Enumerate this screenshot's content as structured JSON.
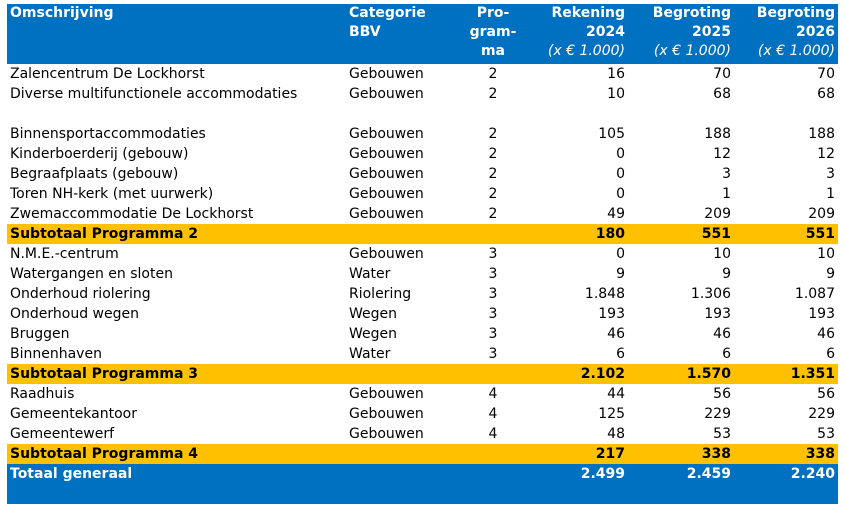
{
  "header": {
    "omschrijving": "Omschrijving",
    "categorie_line1": "Categorie",
    "categorie_line2": "BBV",
    "programma_line1": "Pro-",
    "programma_line2": "gram-",
    "programma_line3": "ma",
    "rekening_line1": "Rekening",
    "rekening_line2": "2024",
    "rekening_unit": "(x € 1.000)",
    "begroting2025_line1": "Begroting",
    "begroting2025_line2": "2025",
    "begroting2025_unit": "(x € 1.000)",
    "begroting2026_line1": "Begroting",
    "begroting2026_line2": "2026",
    "begroting2026_unit": "(x € 1.000)"
  },
  "rows": [
    {
      "omschrijving": "Zalencentrum De Lockhorst",
      "categorie": "Gebouwen",
      "programma": "2",
      "rekening": "16",
      "b2025": "70",
      "b2026": "70"
    },
    {
      "omschrijving": "Diverse multifunctionele accommodaties",
      "categorie": "Gebouwen",
      "programma": "2",
      "rekening": "10",
      "b2025": "68",
      "b2026": "68"
    },
    {
      "omschrijving": "Binnensportaccommodaties",
      "categorie": "Gebouwen",
      "programma": "2",
      "rekening": "105",
      "b2025": "188",
      "b2026": "188"
    },
    {
      "omschrijving": "Kinderboerderij (gebouw)",
      "categorie": "Gebouwen",
      "programma": "2",
      "rekening": "0",
      "b2025": "12",
      "b2026": "12"
    },
    {
      "omschrijving": "Begraafplaats (gebouw)",
      "categorie": "Gebouwen",
      "programma": "2",
      "rekening": "0",
      "b2025": "3",
      "b2026": "3"
    },
    {
      "omschrijving": "Toren NH-kerk (met uurwerk)",
      "categorie": "Gebouwen",
      "programma": "2",
      "rekening": "0",
      "b2025": "1",
      "b2026": "1"
    },
    {
      "omschrijving": "Zwemaccommodatie De Lockhorst",
      "categorie": "Gebouwen",
      "programma": "2",
      "rekening": "49",
      "b2025": "209",
      "b2026": "209"
    },
    {
      "omschrijving": "N.M.E.-centrum",
      "categorie": "Gebouwen",
      "programma": "3",
      "rekening": "0",
      "b2025": "10",
      "b2026": "10"
    },
    {
      "omschrijving": "Watergangen en sloten",
      "categorie": "Water",
      "programma": "3",
      "rekening": "9",
      "b2025": "9",
      "b2026": "9"
    },
    {
      "omschrijving": "Onderhoud riolering",
      "categorie": "Riolering",
      "programma": "3",
      "rekening": "1.848",
      "b2025": "1.306",
      "b2026": "1.087"
    },
    {
      "omschrijving": "Onderhoud wegen",
      "categorie": "Wegen",
      "programma": "3",
      "rekening": "193",
      "b2025": "193",
      "b2026": "193"
    },
    {
      "omschrijving": "Bruggen",
      "categorie": "Wegen",
      "programma": "3",
      "rekening": "46",
      "b2025": "46",
      "b2026": "46"
    },
    {
      "omschrijving": "Binnenhaven",
      "categorie": "Water",
      "programma": "3",
      "rekening": "6",
      "b2025": "6",
      "b2026": "6"
    },
    {
      "omschrijving": "Raadhuis",
      "categorie": "Gebouwen",
      "programma": "4",
      "rekening": "44",
      "b2025": "56",
      "b2026": "56"
    },
    {
      "omschrijving": "Gemeentekantoor",
      "categorie": "Gebouwen",
      "programma": "4",
      "rekening": "125",
      "b2025": "229",
      "b2026": "229"
    },
    {
      "omschrijving": "Gemeentewerf",
      "categorie": "Gebouwen",
      "programma": "4",
      "rekening": "48",
      "b2025": "53",
      "b2026": "53"
    }
  ],
  "subtotals": [
    {
      "label": "Subtotaal Programma 2",
      "rekening": "180",
      "b2025": "551",
      "b2026": "551"
    },
    {
      "label": "Subtotaal Programma 3",
      "rekening": "2.102",
      "b2025": "1.570",
      "b2026": "1.351"
    },
    {
      "label": "Subtotaal Programma 4",
      "rekening": "217",
      "b2025": "338",
      "b2026": "338"
    }
  ],
  "total": {
    "label": "Totaal generaal",
    "rekening": "2.499",
    "b2025": "2.459",
    "b2026": "2.240"
  },
  "colors": {
    "header_blue": "#0070c0",
    "subtotal_orange": "#ffc000"
  }
}
